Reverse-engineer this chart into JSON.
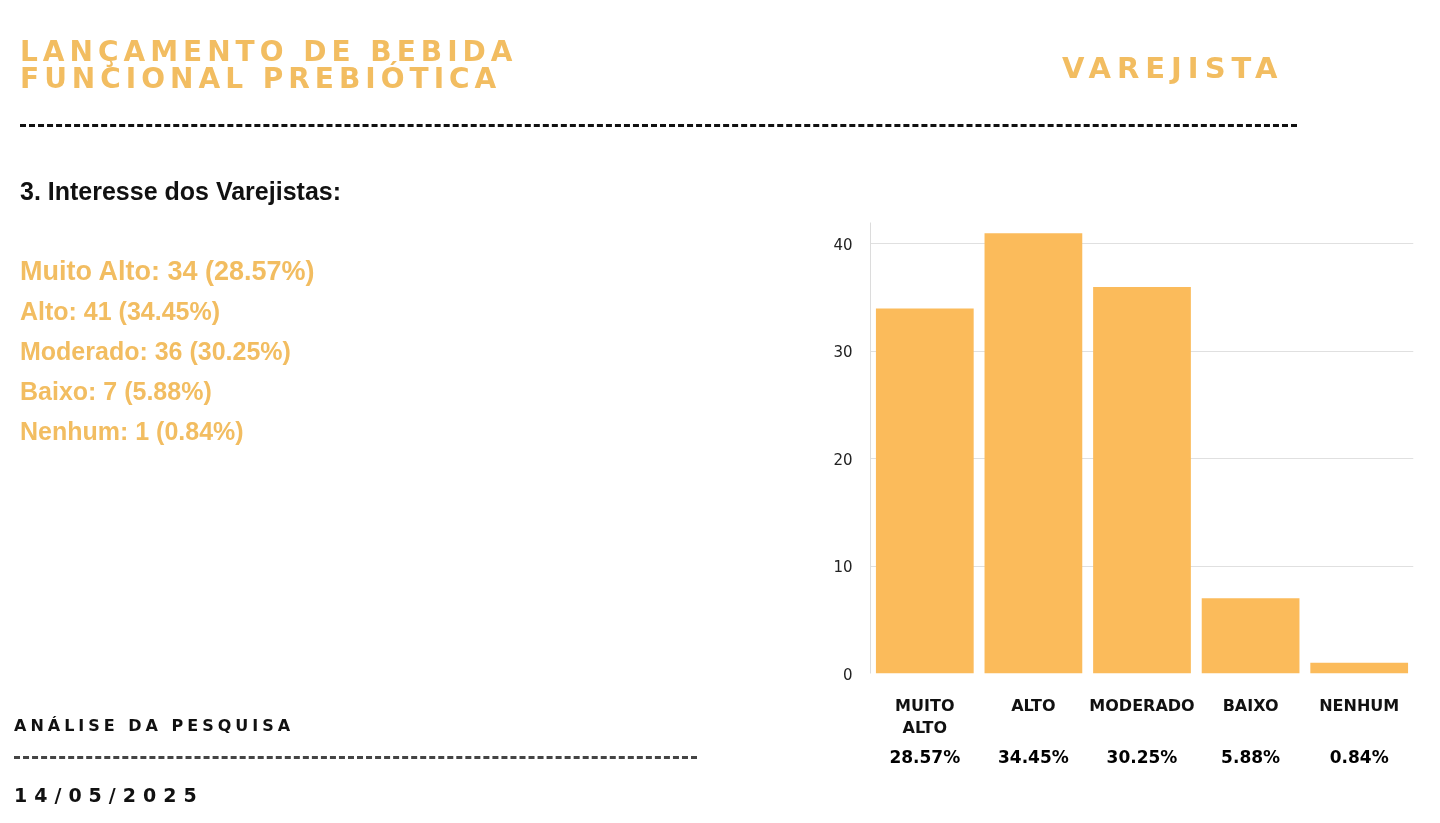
{
  "chart_data": {
    "type": "bar",
    "title": "LANÇAMENTO DE BEBIDA FUNCIONAL PREBIÓTICA",
    "subtitle": "3. Interesse dos Varejistas:",
    "categories": [
      "MUITO ALTO",
      "ALTO",
      "MODERADO",
      "BAIXO",
      "NENHUM"
    ],
    "values": [
      34,
      41,
      36,
      7,
      1
    ],
    "color": "#fbbb5b",
    "ylim": [
      0,
      42
    ],
    "yticks": [
      0,
      10,
      20,
      30,
      40
    ],
    "grid": "y",
    "annotations": [
      "VAREJISTA",
      "Muito Alto: 34 (28.57%)",
      "Alto: 41 (34.45%)",
      "Moderado: 36 (30.25%)",
      "Baixo: 7 (5.88%)",
      "Nenhum: 1 (0.84%)",
      "28.57%",
      "34.45%",
      "30.25%",
      "5.88%",
      "0.84%",
      "ANÁLISE DA PESQUISA",
      "14/05/2025"
    ]
  }
}
